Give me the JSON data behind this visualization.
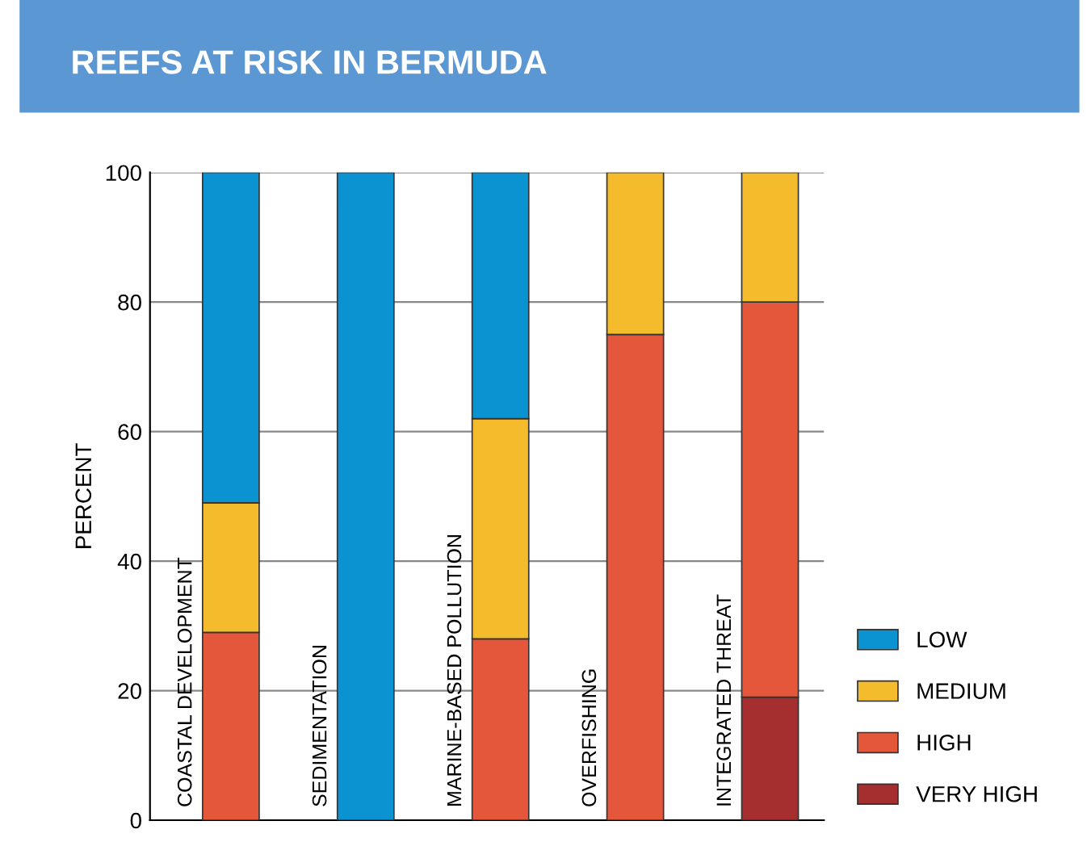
{
  "chart_data": {
    "type": "bar",
    "title": "REEFS AT RISK IN BERMUDA",
    "ylabel": "PERCENT",
    "categories": [
      "COASTAL DEVELOPMENT",
      "SEDIMENTATION",
      "MARINE-BASED POLLUTION",
      "OVERFISHING",
      "INTEGRATED THREAT"
    ],
    "stacked": true,
    "series": [
      {
        "name": "VERY HIGH",
        "color": "#a52e2e",
        "values": [
          0,
          0,
          0,
          0,
          19
        ]
      },
      {
        "name": "HIGH",
        "color": "#e5573a",
        "values": [
          29,
          0,
          28,
          75,
          61
        ]
      },
      {
        "name": "MEDIUM",
        "color": "#f4bc2d",
        "values": [
          20,
          0,
          34,
          25,
          20
        ]
      },
      {
        "name": "LOW",
        "color": "#0a93d0",
        "values": [
          51,
          100,
          38,
          0,
          0
        ]
      }
    ],
    "ylim": [
      0,
      100
    ],
    "yticks": [
      0,
      20,
      40,
      60,
      80,
      100
    ],
    "grid": "y",
    "legend": "bottom right"
  }
}
